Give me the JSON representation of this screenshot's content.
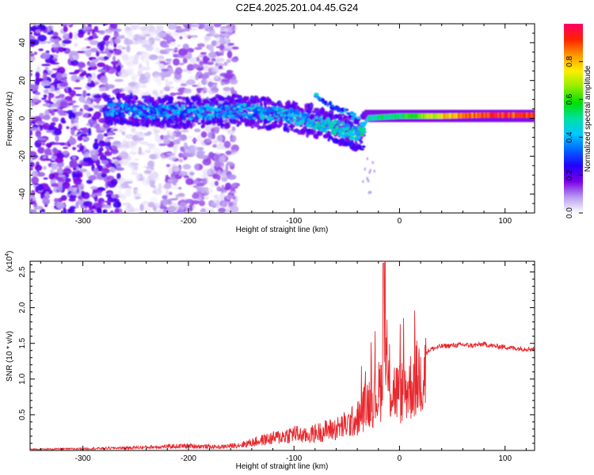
{
  "title": "C2E4.2025.201.04.45.G24",
  "chart_data": [
    {
      "type": "heatmap",
      "xlabel": "Height of straight line (km)",
      "ylabel": "Frequency (Hz)",
      "xlim": [
        -350,
        128
      ],
      "ylim": [
        -50,
        50
      ],
      "x_ticks": [
        -300,
        -200,
        -100,
        0,
        100
      ],
      "y_ticks": [
        -40,
        -20,
        0,
        20,
        40
      ],
      "colorbar": {
        "label": "Normalized spectral amplitude",
        "range": [
          0,
          1
        ],
        "ticks": [
          "0.0",
          "0.2",
          "0.4",
          "0.6",
          "0.8"
        ],
        "colors": [
          "#ffffff",
          "#b89cf0",
          "#7a00e6",
          "#2200ff",
          "#0066ff",
          "#00c8ff",
          "#00e0a0",
          "#00e000",
          "#90ee00",
          "#ffee00",
          "#ff9900",
          "#ff2200",
          "#ff0066"
        ]
      },
      "ridge": [
        {
          "x": -280,
          "y": 5,
          "a": 0.22
        },
        {
          "x": -240,
          "y": 4,
          "a": 0.24
        },
        {
          "x": -200,
          "y": 3,
          "a": 0.26
        },
        {
          "x": -160,
          "y": 4,
          "a": 0.28
        },
        {
          "x": -130,
          "y": 3,
          "a": 0.28
        },
        {
          "x": -100,
          "y": 1,
          "a": 0.3
        },
        {
          "x": -80,
          "y": -2,
          "a": 0.34
        },
        {
          "x": -60,
          "y": -5,
          "a": 0.36
        },
        {
          "x": -40,
          "y": -9,
          "a": 0.32
        },
        {
          "x": -30,
          "y": 0,
          "a": 0.5
        },
        {
          "x": 0,
          "y": 1,
          "a": 0.55
        },
        {
          "x": 40,
          "y": 1,
          "a": 0.75
        },
        {
          "x": 80,
          "y": 1.5,
          "a": 0.92
        },
        {
          "x": 128,
          "y": 1.5,
          "a": 0.9
        }
      ]
    },
    {
      "type": "line",
      "xlabel": "Height of straight line (km)",
      "ylabel": "SNR (10 * v/v)",
      "scale_label": "(x10",
      "scale_exp": "4",
      "scale_suffix": ")",
      "xlim": [
        -350,
        128
      ],
      "ylim": [
        0,
        2.65
      ],
      "x_ticks": [
        -300,
        -200,
        -100,
        0,
        100
      ],
      "y_ticks": [
        0.5,
        1.0,
        1.5,
        2.0,
        2.5
      ],
      "y_tick_labels": [
        "0.5",
        "1.0",
        "1.5",
        "2.0",
        "2.5"
      ],
      "color": "#e8282d",
      "series": [
        {
          "x": [
            -350,
            -300,
            -250,
            -200,
            -170,
            -150,
            -130,
            -110,
            -100,
            -90,
            -80,
            -70,
            -60,
            -50,
            -40,
            -35,
            -30,
            -25,
            -20,
            -17,
            -15,
            -12,
            -10,
            -5,
            0,
            5,
            10,
            15,
            20,
            30,
            40,
            50,
            60,
            70,
            80,
            90,
            100,
            110,
            128
          ],
          "y": [
            0.02,
            0.03,
            0.05,
            0.08,
            0.06,
            0.1,
            0.18,
            0.25,
            0.3,
            0.25,
            0.3,
            0.35,
            0.38,
            0.45,
            0.55,
            0.7,
            0.85,
            0.9,
            1.0,
            1.15,
            2.62,
            1.3,
            1.1,
            1.05,
            1.0,
            1.05,
            1.12,
            1.22,
            1.32,
            1.42,
            1.46,
            1.47,
            1.48,
            1.47,
            1.49,
            1.46,
            1.45,
            1.43,
            1.42
          ]
        }
      ]
    }
  ]
}
